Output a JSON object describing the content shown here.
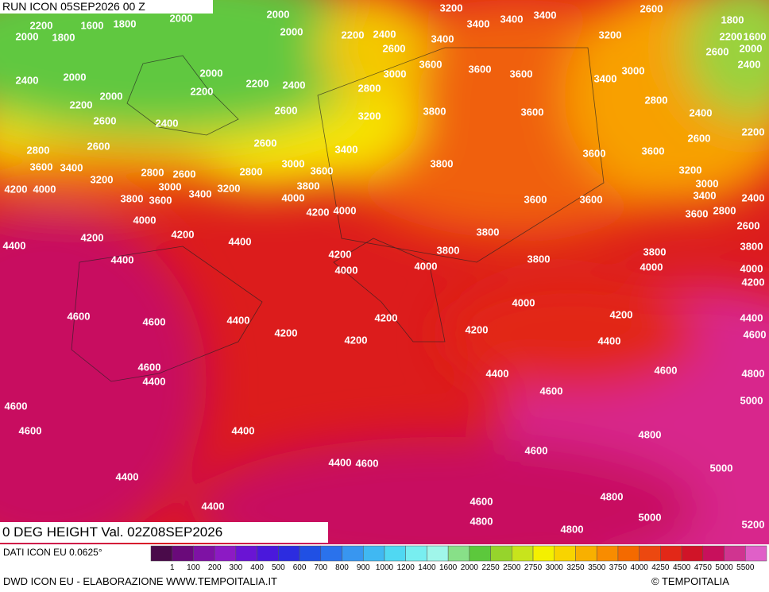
{
  "header": {
    "title": "RUN ICON 05SEP2026 00 Z"
  },
  "caption": "0 DEG HEIGHT Val. 02Z08SEP2026",
  "footer": {
    "data_source": "DATI ICON EU 0.0625°",
    "credits": "DWD ICON EU - ELABORAZIONE WWW.TEMPOITALIA.IT",
    "copyright": "© TEMPOITALIA"
  },
  "legend": {
    "labels": [
      1,
      100,
      200,
      300,
      400,
      500,
      600,
      700,
      800,
      900,
      1000,
      1200,
      1400,
      1600,
      2000,
      2250,
      2500,
      2750,
      3000,
      3250,
      3500,
      3750,
      4000,
      4250,
      4500,
      4750,
      5000,
      5500
    ],
    "colors": [
      "#4a0a4a",
      "#6a0a7a",
      "#7e12a4",
      "#8c1ac4",
      "#6a14d4",
      "#4a18dc",
      "#2c2ce0",
      "#2050e4",
      "#2a72ec",
      "#3896f0",
      "#40b8f2",
      "#50d8f2",
      "#78eef0",
      "#a0f6ea",
      "#88e088",
      "#5cc83c",
      "#96d42c",
      "#c8e41c",
      "#f4f000",
      "#f8d400",
      "#f8b000",
      "#f88c00",
      "#f46a00",
      "#ec4810",
      "#e22818",
      "#d01428",
      "#c8105c",
      "#d03490",
      "#e060c8"
    ]
  },
  "map": {
    "contour_labels": [
      2000,
      2000,
      2000,
      2200,
      1800,
      2000,
      1600,
      1800,
      3200,
      3400,
      3400,
      3400,
      2600,
      1800,
      2200,
      1600,
      2000,
      2600,
      2400,
      3200,
      2200,
      2400,
      2600,
      3400,
      3600,
      3600,
      3600,
      3400,
      3000,
      2400,
      2000,
      2000,
      2200,
      2400,
      3000,
      2800,
      2000,
      2200,
      2200,
      2600,
      3200,
      3800,
      3600,
      2800,
      2400,
      2600,
      2400,
      2200,
      2600,
      2800,
      2600,
      2600,
      3400,
      3600,
      3600,
      3600,
      3400,
      3200,
      2800,
      2600,
      2800,
      3000,
      3600,
      3800,
      3200,
      3000,
      4200,
      4000,
      3000,
      3400,
      3200,
      3800,
      3400,
      2400,
      3800,
      3600,
      4000,
      4200,
      4000,
      3600,
      3600,
      3600,
      2800,
      4000,
      2600,
      4200,
      4400,
      4200,
      3800,
      4400,
      3800,
      3800,
      3800,
      4200,
      4400,
      3800,
      4000,
      4000,
      4000,
      4000,
      4200,
      4000,
      4600,
      4600,
      4400,
      4200,
      4200,
      4400,
      4200,
      4200,
      4200,
      4400,
      4600,
      4600,
      4400,
      4600,
      4800,
      4400,
      4600,
      5000,
      4600,
      4400,
      4800,
      4600,
      4600,
      4400,
      4600,
      5000,
      4400,
      4800,
      4600,
      4400,
      5000,
      4800,
      4800,
      5200
    ]
  }
}
